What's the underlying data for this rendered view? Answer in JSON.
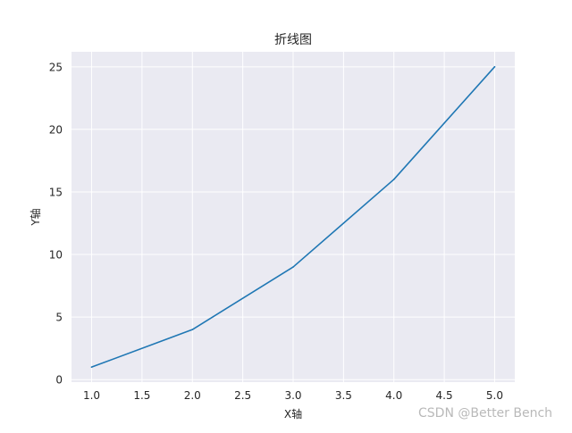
{
  "chart_data": {
    "type": "line",
    "title": "折线图",
    "xlabel": "X轴",
    "ylabel": "Y轴",
    "x": [
      1,
      2,
      3,
      4,
      5
    ],
    "series": [
      {
        "values": [
          1,
          4,
          9,
          16,
          25
        ]
      }
    ],
    "xlim": [
      0.8,
      5.2
    ],
    "ylim": [
      -0.2,
      26.2
    ],
    "xticks": [
      "1.0",
      "1.5",
      "2.0",
      "2.5",
      "3.0",
      "3.5",
      "4.0",
      "4.5",
      "5.0"
    ],
    "yticks": [
      "0",
      "5",
      "10",
      "15",
      "20",
      "25"
    ],
    "grid": true,
    "legend": "none",
    "colors": {
      "plot_background": "#eaeaf2",
      "grid": "#ffffff",
      "line": "#1f77b4",
      "text": "#262626"
    }
  },
  "watermark": "CSDN @Better Bench"
}
